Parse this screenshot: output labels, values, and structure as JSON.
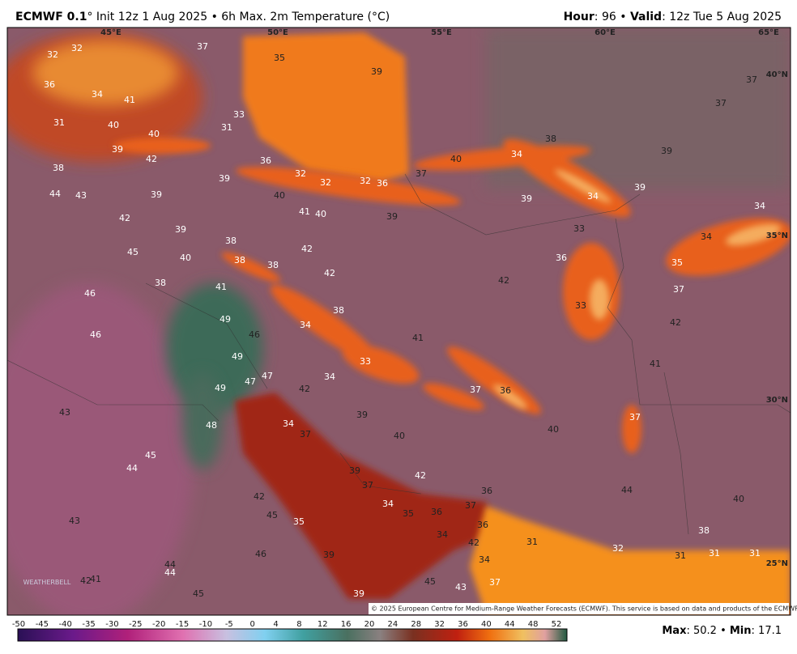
{
  "header": {
    "model": "ECMWF 0.1",
    "title_rest": "° Init 12z 1 Aug 2025 • 6h Max. 2m Temperature (°C)",
    "hour_label": "Hour",
    "hour_rest": ": 96 • ",
    "valid_label": "Valid",
    "valid_rest": ": 12z Tue 5 Aug 2025"
  },
  "map": {
    "lon_labels": [
      "45°E",
      "50°E",
      "55°E",
      "60°E",
      "65°E"
    ],
    "lat_labels": [
      "40°N",
      "35°N",
      "30°N",
      "25°N"
    ],
    "labels": [
      32,
      32,
      37,
      35,
      39,
      37,
      36,
      34,
      41,
      33,
      37,
      31,
      40,
      40,
      31,
      39,
      42,
      36,
      40,
      34,
      38,
      39,
      38,
      39,
      32,
      32,
      32,
      36,
      37,
      39,
      44,
      43,
      39,
      40,
      39,
      34,
      34,
      42,
      41,
      40,
      39,
      33,
      34,
      39,
      38,
      45,
      42,
      40,
      38,
      38,
      36,
      35,
      42,
      42,
      38,
      41,
      37,
      46,
      38,
      33,
      49,
      34,
      42,
      46,
      46,
      41,
      49,
      33,
      41,
      47,
      47,
      34,
      49,
      42,
      37,
      36,
      43,
      48,
      34,
      39,
      37,
      40,
      37,
      40,
      45,
      44,
      39,
      42,
      37,
      36,
      44,
      40,
      42,
      45,
      34,
      35,
      36,
      37,
      43,
      35,
      36,
      34,
      38,
      31,
      42,
      32,
      46,
      39,
      34,
      31,
      31,
      31,
      44,
      44,
      41,
      42,
      45,
      43,
      37,
      45,
      39
    ],
    "logo": "WEATHERBELL",
    "copyright": "© 2025 European Centre for Medium-Range Weather Forecasts (ECMWF). This service is based on data and products of the ECMWF."
  },
  "colorbar": {
    "ticks": [
      -50,
      -45,
      -40,
      -35,
      -30,
      -25,
      -20,
      -15,
      -10,
      -5,
      0,
      4,
      8,
      12,
      16,
      20,
      24,
      28,
      32,
      36,
      40,
      44,
      48,
      52
    ]
  },
  "footer": {
    "max_label": "Max",
    "max": 50.2,
    "sep": " • ",
    "min_label": "Min",
    "min": 17.1
  }
}
